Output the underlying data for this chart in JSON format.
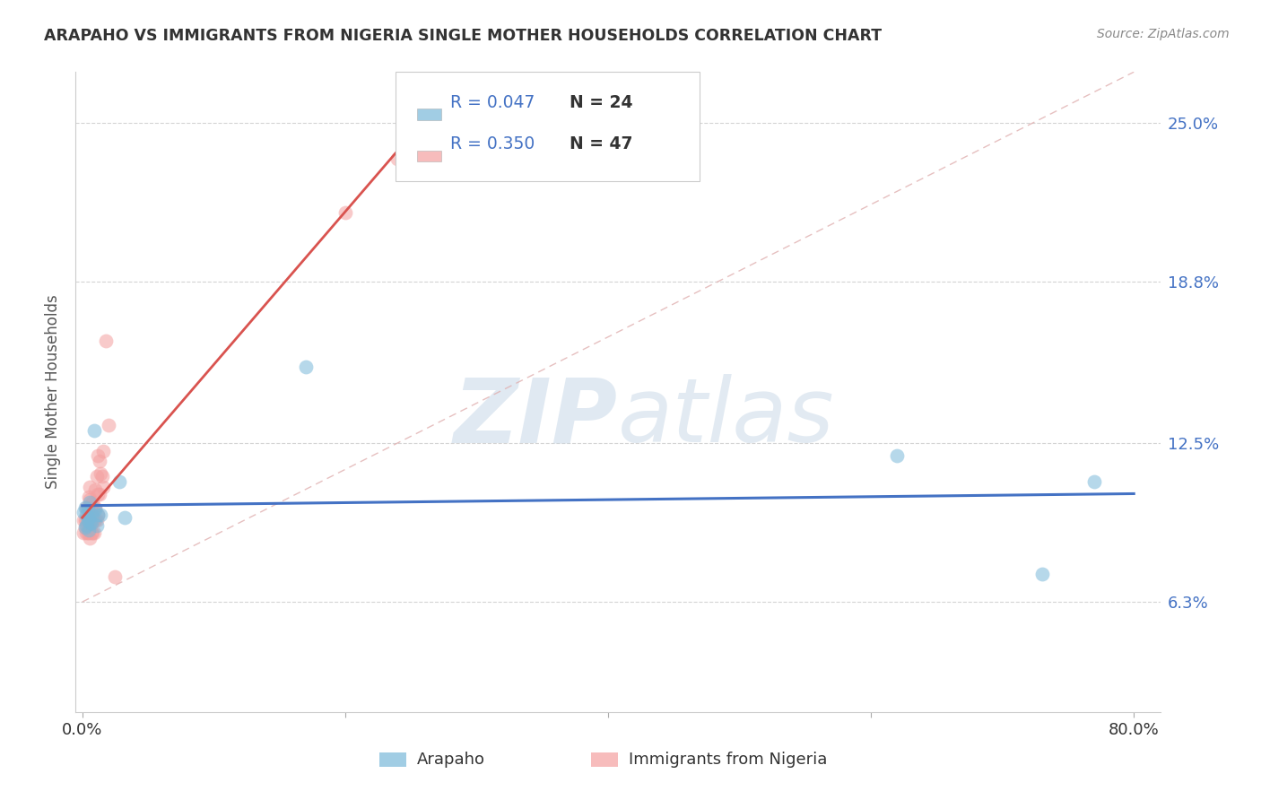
{
  "title": "ARAPAHO VS IMMIGRANTS FROM NIGERIA SINGLE MOTHER HOUSEHOLDS CORRELATION CHART",
  "source": "Source: ZipAtlas.com",
  "ylabel": "Single Mother Households",
  "ytick_vals": [
    0.063,
    0.125,
    0.188,
    0.25
  ],
  "ytick_labels": [
    "6.3%",
    "12.5%",
    "18.8%",
    "25.0%"
  ],
  "xlim": [
    0.0,
    0.8
  ],
  "ylim": [
    0.02,
    0.27
  ],
  "legend_r_arapaho": "R = 0.047",
  "legend_n_arapaho": "N = 24",
  "legend_r_nigeria": "R = 0.350",
  "legend_n_nigeria": "N = 47",
  "arapaho_color": "#7ab8d9",
  "nigeria_color": "#f4a0a0",
  "arapaho_x": [
    0.001,
    0.002,
    0.002,
    0.003,
    0.003,
    0.004,
    0.004,
    0.005,
    0.005,
    0.006,
    0.006,
    0.007,
    0.008,
    0.009,
    0.01,
    0.011,
    0.012,
    0.014,
    0.028,
    0.032,
    0.17,
    0.62,
    0.73,
    0.77
  ],
  "arapaho_y": [
    0.098,
    0.092,
    0.1,
    0.097,
    0.093,
    0.099,
    0.095,
    0.091,
    0.096,
    0.094,
    0.102,
    0.094,
    0.097,
    0.13,
    0.099,
    0.093,
    0.097,
    0.097,
    0.11,
    0.096,
    0.155,
    0.12,
    0.074,
    0.11
  ],
  "nigeria_x": [
    0.001,
    0.001,
    0.002,
    0.002,
    0.003,
    0.003,
    0.003,
    0.004,
    0.004,
    0.004,
    0.005,
    0.005,
    0.005,
    0.005,
    0.006,
    0.006,
    0.006,
    0.006,
    0.006,
    0.007,
    0.007,
    0.007,
    0.008,
    0.008,
    0.008,
    0.009,
    0.009,
    0.009,
    0.01,
    0.01,
    0.01,
    0.011,
    0.011,
    0.012,
    0.012,
    0.012,
    0.013,
    0.013,
    0.014,
    0.015,
    0.016,
    0.016,
    0.018,
    0.02,
    0.025,
    0.2,
    0.24
  ],
  "nigeria_y": [
    0.095,
    0.09,
    0.092,
    0.095,
    0.09,
    0.095,
    0.1,
    0.09,
    0.095,
    0.1,
    0.09,
    0.093,
    0.097,
    0.104,
    0.088,
    0.093,
    0.098,
    0.103,
    0.108,
    0.09,
    0.095,
    0.1,
    0.09,
    0.095,
    0.102,
    0.09,
    0.095,
    0.1,
    0.095,
    0.1,
    0.107,
    0.095,
    0.112,
    0.097,
    0.105,
    0.12,
    0.105,
    0.118,
    0.113,
    0.112,
    0.108,
    0.122,
    0.165,
    0.132,
    0.073,
    0.215,
    0.236
  ],
  "watermark_zip": "ZIP",
  "watermark_atlas": "atlas",
  "background_color": "#ffffff",
  "grid_color": "#d0d0d0"
}
